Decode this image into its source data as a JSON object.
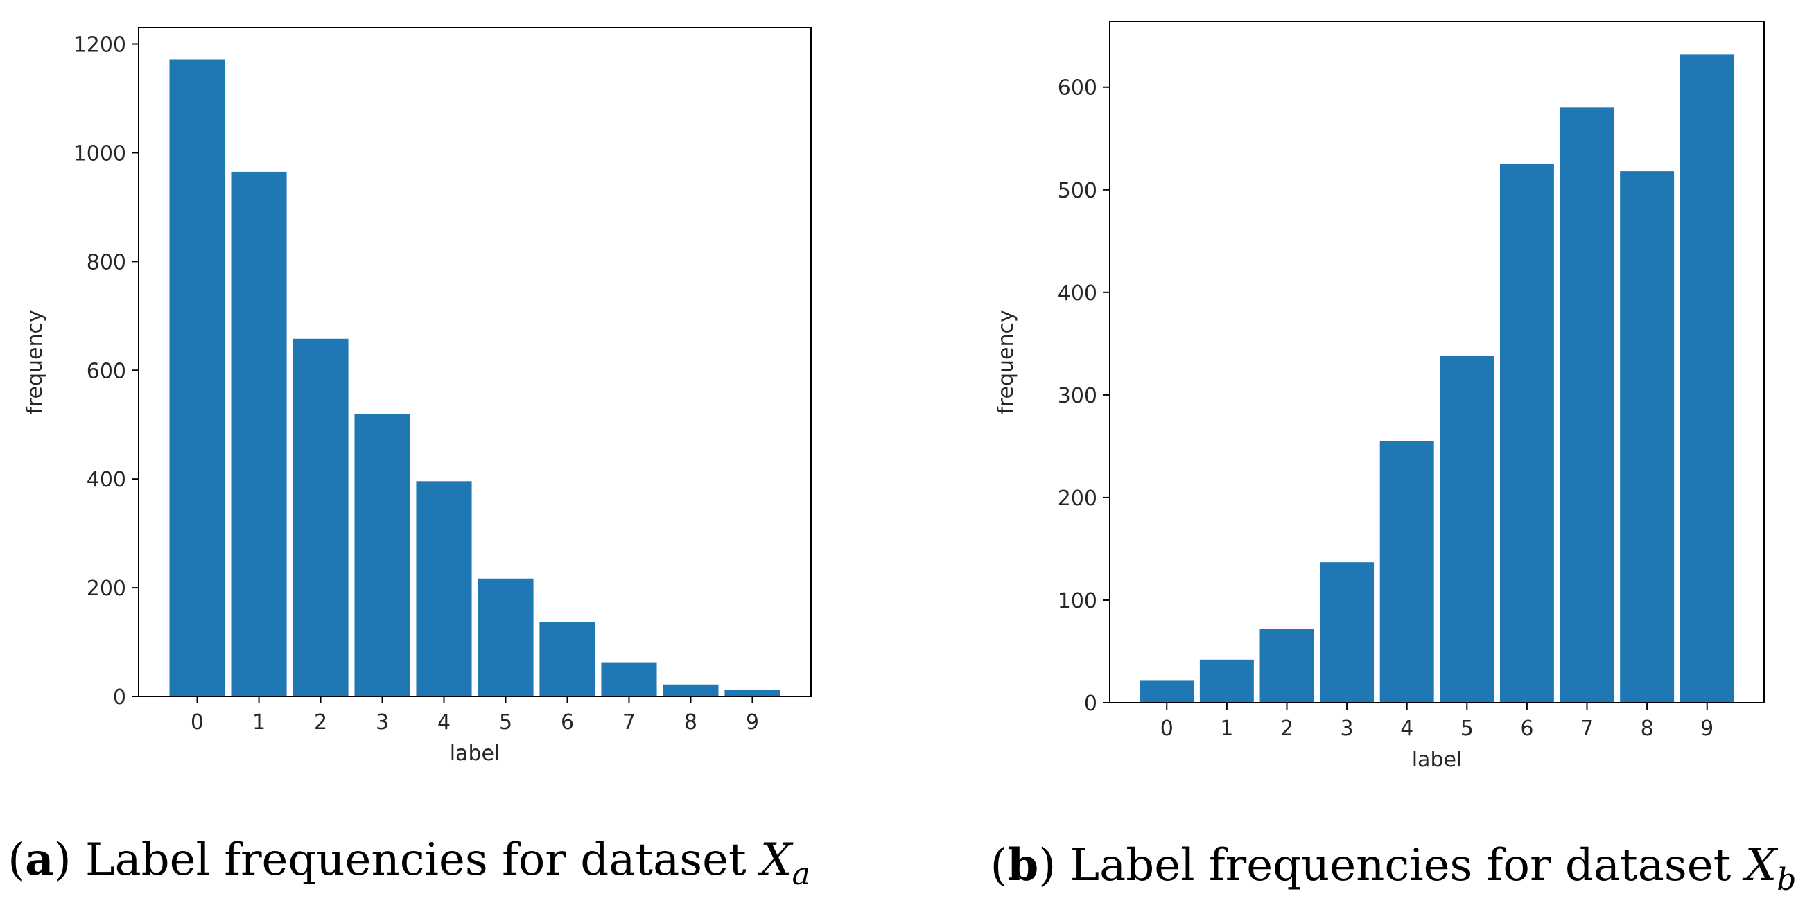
{
  "colors": {
    "bar": "#1f77b4",
    "axis": "#000000",
    "text": "#262626",
    "background": "#ffffff"
  },
  "chart_data": [
    {
      "type": "bar",
      "panel": "a",
      "categories": [
        "0",
        "1",
        "2",
        "3",
        "4",
        "5",
        "6",
        "7",
        "8",
        "9"
      ],
      "values": [
        1172,
        965,
        658,
        520,
        396,
        217,
        137,
        63,
        22,
        12
      ],
      "xlabel": "label",
      "ylabel": "frequency",
      "ylim": [
        0,
        1230
      ],
      "yticks": [
        0,
        200,
        400,
        600,
        800,
        1000,
        1200
      ],
      "grid": false,
      "caption": {
        "letter": "a",
        "text": "Label frequencies for dataset",
        "var": "X",
        "sub": "a"
      }
    },
    {
      "type": "bar",
      "panel": "b",
      "categories": [
        "0",
        "1",
        "2",
        "3",
        "4",
        "5",
        "6",
        "7",
        "8",
        "9"
      ],
      "values": [
        22,
        42,
        72,
        137,
        255,
        338,
        525,
        580,
        518,
        632
      ],
      "xlabel": "label",
      "ylabel": "frequency",
      "ylim": [
        0,
        664
      ],
      "yticks": [
        0,
        100,
        200,
        300,
        400,
        500,
        600
      ],
      "grid": false,
      "caption": {
        "letter": "b",
        "text": "Label frequencies for dataset",
        "var": "X",
        "sub": "b"
      }
    }
  ]
}
